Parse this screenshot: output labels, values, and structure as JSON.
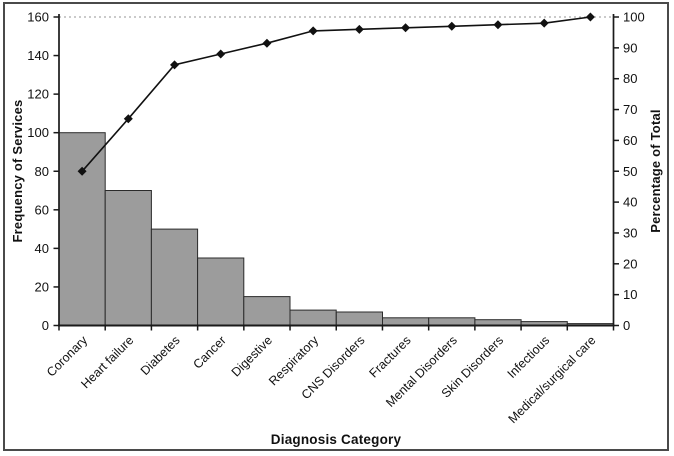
{
  "figure": {
    "background": "#ffffff",
    "border_color": "#4a4a4a"
  },
  "chart_data": {
    "type": "bar",
    "subtype": "pareto-with-cumulative-line",
    "title": "",
    "xlabel": "Diagnosis Category",
    "ylabel_left": "Frequency of Services",
    "ylabel_right": "Percentage of Total",
    "categories": [
      "Coronary",
      "Heart failure",
      "Diabetes",
      "Cancer",
      "Digestive",
      "Respiratory",
      "CNS Disorders",
      "Fractures",
      "Mental Disorders",
      "Skin Disorders",
      "Infectious",
      "Medical/surgical care"
    ],
    "series": [
      {
        "name": "Frequency of Services",
        "type": "bar",
        "values": [
          100,
          70,
          50,
          35,
          15,
          8,
          7,
          4,
          4,
          3,
          2,
          1
        ]
      },
      {
        "name": "Cumulative percentage of total",
        "type": "line",
        "marker": "diamond",
        "values": [
          50,
          67,
          84.5,
          88,
          91.5,
          95.5,
          96,
          96.5,
          97,
          97.5,
          98,
          100
        ]
      }
    ],
    "left_axis": {
      "min": 0,
      "max": 160,
      "ticks": [
        0,
        20,
        40,
        60,
        80,
        100,
        120,
        140,
        160
      ]
    },
    "right_axis": {
      "min": 0,
      "max": 100,
      "ticks": [
        0,
        10,
        20,
        30,
        40,
        50,
        60,
        70,
        80,
        90,
        100
      ]
    },
    "gridline": {
      "at_right_axis_value": 100,
      "style": "dotted"
    },
    "legend": "none",
    "colors": {
      "bar_fill": "#9c9c9c",
      "bar_stroke": "#2b2b2b",
      "line": "#111111",
      "marker": "#111111",
      "grid": "#aaaaaa",
      "axis": "#1a1a1a",
      "text": "#111111"
    }
  }
}
